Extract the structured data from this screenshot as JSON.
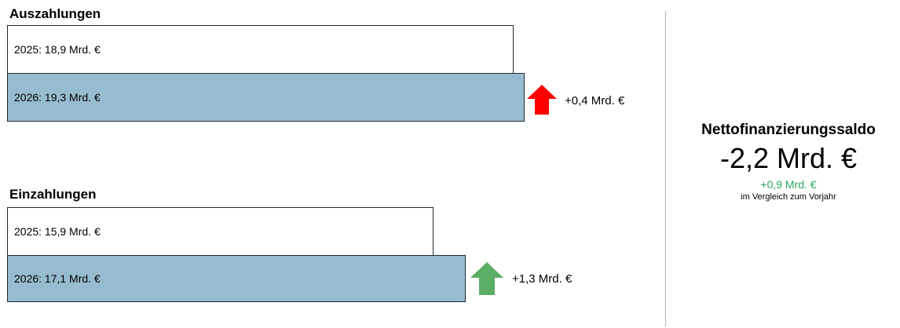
{
  "chart_data": {
    "type": "bar",
    "unit": "Mrd. €",
    "sections": [
      {
        "title": "Auszahlungen",
        "bars": [
          {
            "year": "2025",
            "value": 18.9,
            "label": "2025: 18,9 Mrd. €"
          },
          {
            "year": "2026",
            "value": 19.3,
            "label": "2026: 19,3 Mrd. €"
          }
        ],
        "change": {
          "value": 0.4,
          "label": "+0,4 Mrd. €",
          "direction": "up",
          "color": "#ff0000"
        }
      },
      {
        "title": "Einzahlungen",
        "bars": [
          {
            "year": "2025",
            "value": 15.9,
            "label": "2025: 15,9 Mrd. €"
          },
          {
            "year": "2026",
            "value": 17.1,
            "label": "2026: 17,1 Mrd. €"
          }
        ],
        "change": {
          "value": 1.3,
          "label": "+1,3 Mrd. €",
          "direction": "up",
          "color": "#5cad66"
        }
      }
    ]
  },
  "summary": {
    "title": "Nettofinanzierungssaldo",
    "value": "-2,2 Mrd. €",
    "change": "+0,9 Mrd. €",
    "change_color": "#2ea85a",
    "note": "im Vergleich zum Vorjahr"
  },
  "colors": {
    "bar_prev": "#ffffff",
    "bar_curr": "#98bccf"
  }
}
